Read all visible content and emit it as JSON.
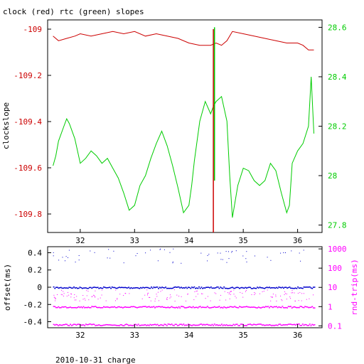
{
  "chart_data": [
    {
      "type": "line",
      "title": "clock (red) rtc (green) slopes",
      "ylabel": "clockslope",
      "xticks": [
        "32",
        "33",
        "34",
        "35",
        "36"
      ],
      "xlim": [
        31.4,
        36.45
      ],
      "y_left": {
        "ticks": [
          "-109",
          "-109.2",
          "-109.4",
          "-109.6",
          "-109.8"
        ],
        "tick_values": [
          -109,
          -109.2,
          -109.4,
          -109.6,
          -109.8
        ],
        "lim": [
          -109.88,
          -108.96
        ],
        "color": "#cc0000"
      },
      "y_right": {
        "ticks": [
          "28.6",
          "28.4",
          "28.2",
          "28",
          "27.8"
        ],
        "tick_values": [
          28.6,
          28.4,
          28.2,
          28.0,
          27.8
        ],
        "lim": [
          27.77,
          28.63
        ],
        "color": "#00cc00"
      },
      "series": [
        {
          "color": "#cc0000",
          "axis": "left",
          "x": [
            31.5,
            31.6,
            31.75,
            31.9,
            32.0,
            32.2,
            32.4,
            32.6,
            32.8,
            33.0,
            33.2,
            33.4,
            33.6,
            33.8,
            34.0,
            34.2,
            34.4,
            34.5,
            34.6,
            34.7,
            34.8,
            35.0,
            35.2,
            35.4,
            35.6,
            35.8,
            36.0,
            36.1,
            36.2,
            36.3
          ],
          "y": [
            -109.03,
            -109.05,
            -109.04,
            -109.03,
            -109.02,
            -109.03,
            -109.02,
            -109.01,
            -109.02,
            -109.01,
            -109.03,
            -109.02,
            -109.03,
            -109.04,
            -109.06,
            -109.07,
            -109.07,
            -109.06,
            -109.07,
            -109.05,
            -109.01,
            -109.02,
            -109.03,
            -109.04,
            -109.05,
            -109.06,
            -109.06,
            -109.07,
            -109.09,
            -109.09
          ]
        },
        {
          "color": "#00cc00",
          "axis": "right",
          "x": [
            31.5,
            31.55,
            31.6,
            31.7,
            31.75,
            31.8,
            31.9,
            32.0,
            32.1,
            32.2,
            32.3,
            32.4,
            32.5,
            32.6,
            32.7,
            32.8,
            32.9,
            33.0,
            33.1,
            33.2,
            33.3,
            33.4,
            33.5,
            33.6,
            33.7,
            33.8,
            33.9,
            34.0,
            34.05,
            34.1,
            34.2,
            34.3,
            34.4,
            34.45,
            34.5,
            34.6,
            34.7,
            34.75,
            34.8,
            34.9,
            35.0,
            35.1,
            35.2,
            35.3,
            35.4,
            35.5,
            35.6,
            35.7,
            35.8,
            35.85,
            35.9,
            36.0,
            36.1,
            36.2,
            36.25,
            36.3
          ],
          "y": [
            28.04,
            28.08,
            28.14,
            28.2,
            28.23,
            28.21,
            28.15,
            28.05,
            28.07,
            28.1,
            28.08,
            28.05,
            28.07,
            28.03,
            27.99,
            27.93,
            27.86,
            27.88,
            27.96,
            28.0,
            28.07,
            28.13,
            28.18,
            28.12,
            28.04,
            27.95,
            27.85,
            27.88,
            27.96,
            28.06,
            28.22,
            28.3,
            28.25,
            28.28,
            28.3,
            28.32,
            28.22,
            28.0,
            27.83,
            27.96,
            28.03,
            28.02,
            27.98,
            27.96,
            27.98,
            28.05,
            28.02,
            27.93,
            27.85,
            27.88,
            28.05,
            28.1,
            28.13,
            28.2,
            28.4,
            28.17
          ]
        },
        {
          "color": "#cc0000",
          "axis": "left",
          "x": [
            34.45,
            34.45
          ],
          "y": [
            -109.88,
            -109.0
          ]
        },
        {
          "color": "#00cc00",
          "axis": "right",
          "x": [
            34.47,
            34.47
          ],
          "y": [
            27.98,
            28.6
          ]
        }
      ]
    },
    {
      "type": "scatter",
      "ylabel": "offset(ms)",
      "y2label": "rnd-trip(ms)",
      "xticks": [
        "32",
        "33",
        "34",
        "35",
        "36"
      ],
      "xlim": [
        31.4,
        36.45
      ],
      "y_left": {
        "ticks": [
          "0.4",
          "0.2",
          "0",
          "-0.2",
          "-0.4"
        ],
        "tick_values": [
          0.4,
          0.2,
          0,
          -0.2,
          -0.4
        ],
        "lim": [
          -0.47,
          0.47
        ]
      },
      "y_right": {
        "ticks": [
          "1000",
          "100",
          "10",
          "1",
          "0.1"
        ],
        "tick_values": [
          1000,
          100,
          10,
          1,
          0.1
        ],
        "scale": "log",
        "lim": [
          0.08,
          1300
        ],
        "color": "#ff00ff"
      },
      "series": [
        {
          "color": "#0000cc",
          "axis": "left",
          "kind": "offset-band",
          "x_range": [
            31.5,
            36.3
          ],
          "y": 0.0
        },
        {
          "color": "#ff00ff",
          "axis": "right",
          "kind": "rtt-band",
          "x_range": [
            31.5,
            36.3
          ],
          "y": 0.12
        },
        {
          "color": "#ff00ff",
          "axis": "right",
          "kind": "rtt-band",
          "x_range": [
            31.5,
            36.3
          ],
          "y": 1.0
        },
        {
          "color": "#ff00ff",
          "axis": "right",
          "kind": "rtt-scatter",
          "x_range": [
            31.5,
            36.3
          ],
          "y_range": [
            2,
            8
          ]
        },
        {
          "color": "#0000cc",
          "axis": "left",
          "kind": "offset-scatter",
          "x_range": [
            31.5,
            36.3
          ],
          "y_range": [
            0.28,
            0.45
          ]
        }
      ]
    }
  ],
  "footer": "2010-10-31 charge"
}
